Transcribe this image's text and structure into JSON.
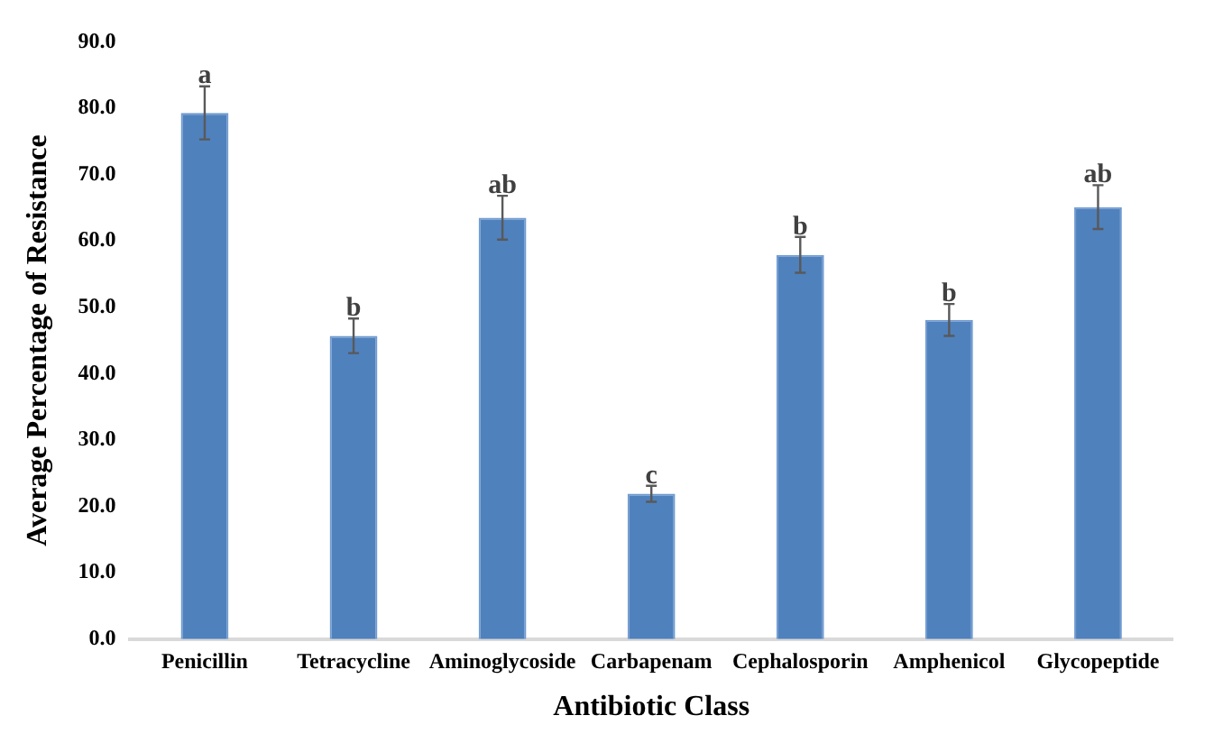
{
  "chart_data": {
    "type": "bar",
    "xlabel": "Antibiotic Class",
    "ylabel": "Average Percentage of Resistance",
    "categories": [
      "Penicillin",
      "Tetracycline",
      "Aminoglycoside",
      "Carbapenam",
      "Cephalosporin",
      "Amphenicol",
      "Glycopeptide"
    ],
    "values": [
      79.3,
      45.7,
      63.5,
      21.9,
      57.9,
      48.1,
      65.1
    ],
    "errors": [
      4.0,
      2.6,
      3.3,
      1.2,
      2.7,
      2.4,
      3.3
    ],
    "color": "#4f81bd",
    "ylim": [
      0,
      90
    ],
    "yticks": [
      {
        "value": 0,
        "label": "0.0"
      },
      {
        "value": 10,
        "label": "10.0"
      },
      {
        "value": 20,
        "label": "20.0"
      },
      {
        "value": 30,
        "label": "30.0"
      },
      {
        "value": 40,
        "label": "40.0"
      },
      {
        "value": 50,
        "label": "50.0"
      },
      {
        "value": 60,
        "label": "60.0"
      },
      {
        "value": 70,
        "label": "70.0"
      },
      {
        "value": 80,
        "label": "80.0"
      },
      {
        "value": 90,
        "label": "90.0"
      }
    ],
    "grid": false,
    "legend": false,
    "annotations": [
      {
        "text": "a",
        "x": "Penicillin",
        "y": 83.3
      },
      {
        "text": "b",
        "x": "Tetracycline",
        "y": 48.3
      },
      {
        "text": "ab",
        "x": "Aminoglycoside",
        "y": 66.8
      },
      {
        "text": "c",
        "x": "Carbapenam",
        "y": 23.1
      },
      {
        "text": "b",
        "x": "Cephalosporin",
        "y": 60.6
      },
      {
        "text": "b",
        "x": "Amphenicol",
        "y": 50.5
      },
      {
        "text": "ab",
        "x": "Glycopeptide",
        "y": 68.4
      }
    ]
  }
}
